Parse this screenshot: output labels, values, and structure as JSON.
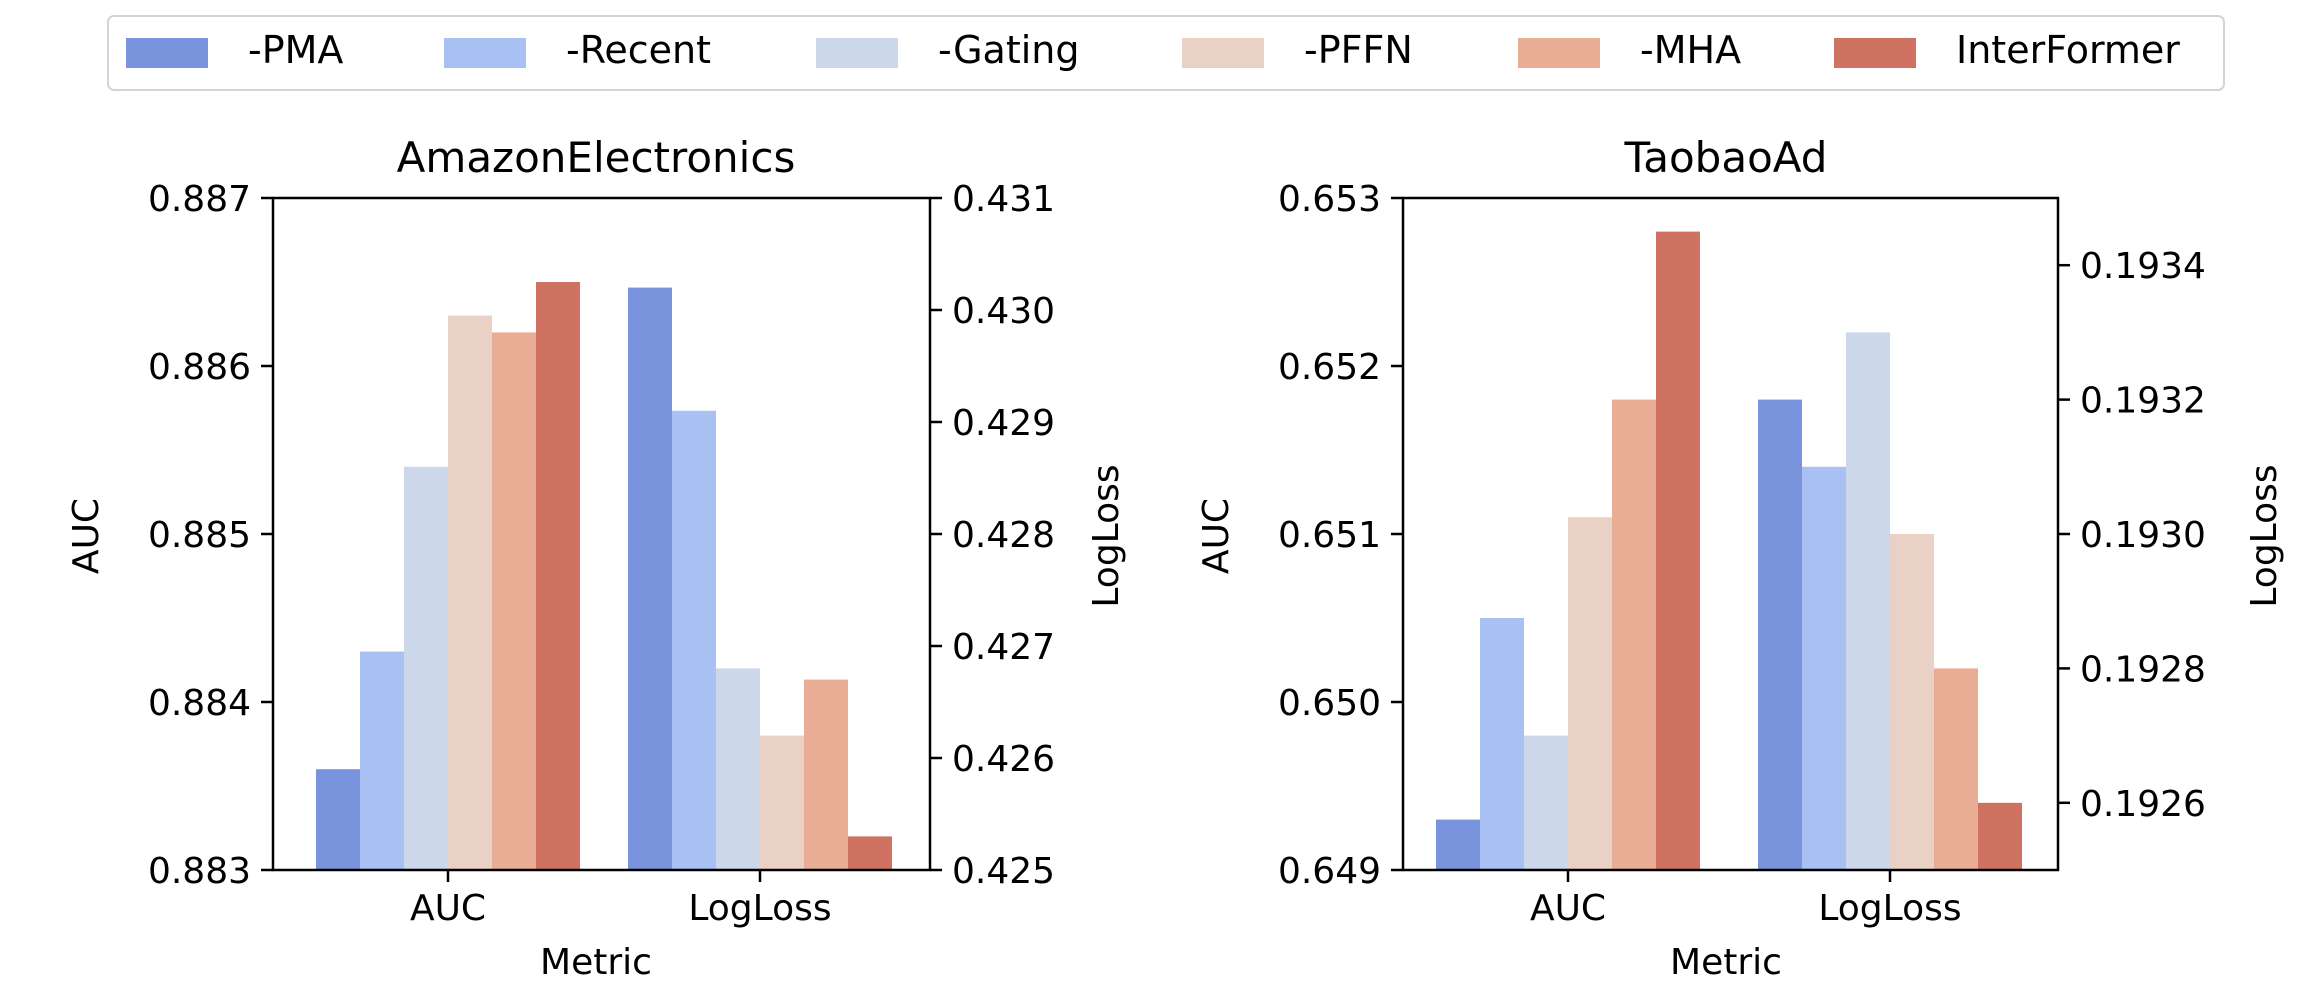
{
  "legend": {
    "items": [
      {
        "label": "-PMA",
        "color": "#7a93dd"
      },
      {
        "label": "-Recent",
        "color": "#a8c0f2"
      },
      {
        "label": "-Gating",
        "color": "#ccd8ea"
      },
      {
        "label": "-PFFN",
        "color": "#ead1c5"
      },
      {
        "label": "-MHA",
        "color": "#e9ac94"
      },
      {
        "label": "InterFormer",
        "color": "#cf7262"
      }
    ]
  },
  "chart_data": [
    {
      "type": "bar",
      "title": "AmazonElectronics",
      "categories": [
        "AUC",
        "LogLoss"
      ],
      "xlabel": "Metric",
      "ylabel": "AUC",
      "y2label": "LogLoss",
      "ylim": [
        0.883,
        0.887
      ],
      "y2lim": [
        0.425,
        0.431
      ],
      "yticks": [
        "0.883",
        "0.884",
        "0.885",
        "0.886",
        "0.887"
      ],
      "y2ticks": [
        "0.425",
        "0.426",
        "0.427",
        "0.428",
        "0.429",
        "0.430",
        "0.431"
      ],
      "series": [
        {
          "name": "-PMA",
          "auc": 0.8836,
          "logloss": 0.4302
        },
        {
          "name": "-Recent",
          "auc": 0.8843,
          "logloss": 0.4291
        },
        {
          "name": "-Gating",
          "auc": 0.8854,
          "logloss": 0.4268
        },
        {
          "name": "-PFFN",
          "auc": 0.8863,
          "logloss": 0.4262
        },
        {
          "name": "-MHA",
          "auc": 0.8862,
          "logloss": 0.4267
        },
        {
          "name": "InterFormer",
          "auc": 0.8865,
          "logloss": 0.4253
        }
      ]
    },
    {
      "type": "bar",
      "title": "TaobaoAd",
      "categories": [
        "AUC",
        "LogLoss"
      ],
      "xlabel": "Metric",
      "ylabel": "AUC",
      "y2label": "LogLoss",
      "ylim": [
        0.649,
        0.653
      ],
      "y2lim": [
        0.1925,
        0.1935
      ],
      "yticks": [
        "0.649",
        "0.650",
        "0.651",
        "0.652",
        "0.653"
      ],
      "y2ticks": [
        "0.1926",
        "0.1928",
        "0.1930",
        "0.1932",
        "0.1934"
      ],
      "series": [
        {
          "name": "-PMA",
          "auc": 0.6493,
          "logloss": 0.1932
        },
        {
          "name": "-Recent",
          "auc": 0.6505,
          "logloss": 0.1931
        },
        {
          "name": "-Gating",
          "auc": 0.6498,
          "logloss": 0.1933
        },
        {
          "name": "-PFFN",
          "auc": 0.6511,
          "logloss": 0.193
        },
        {
          "name": "-MHA",
          "auc": 0.6518,
          "logloss": 0.1928
        },
        {
          "name": "InterFormer",
          "auc": 0.6528,
          "logloss": 0.1926
        }
      ]
    }
  ]
}
